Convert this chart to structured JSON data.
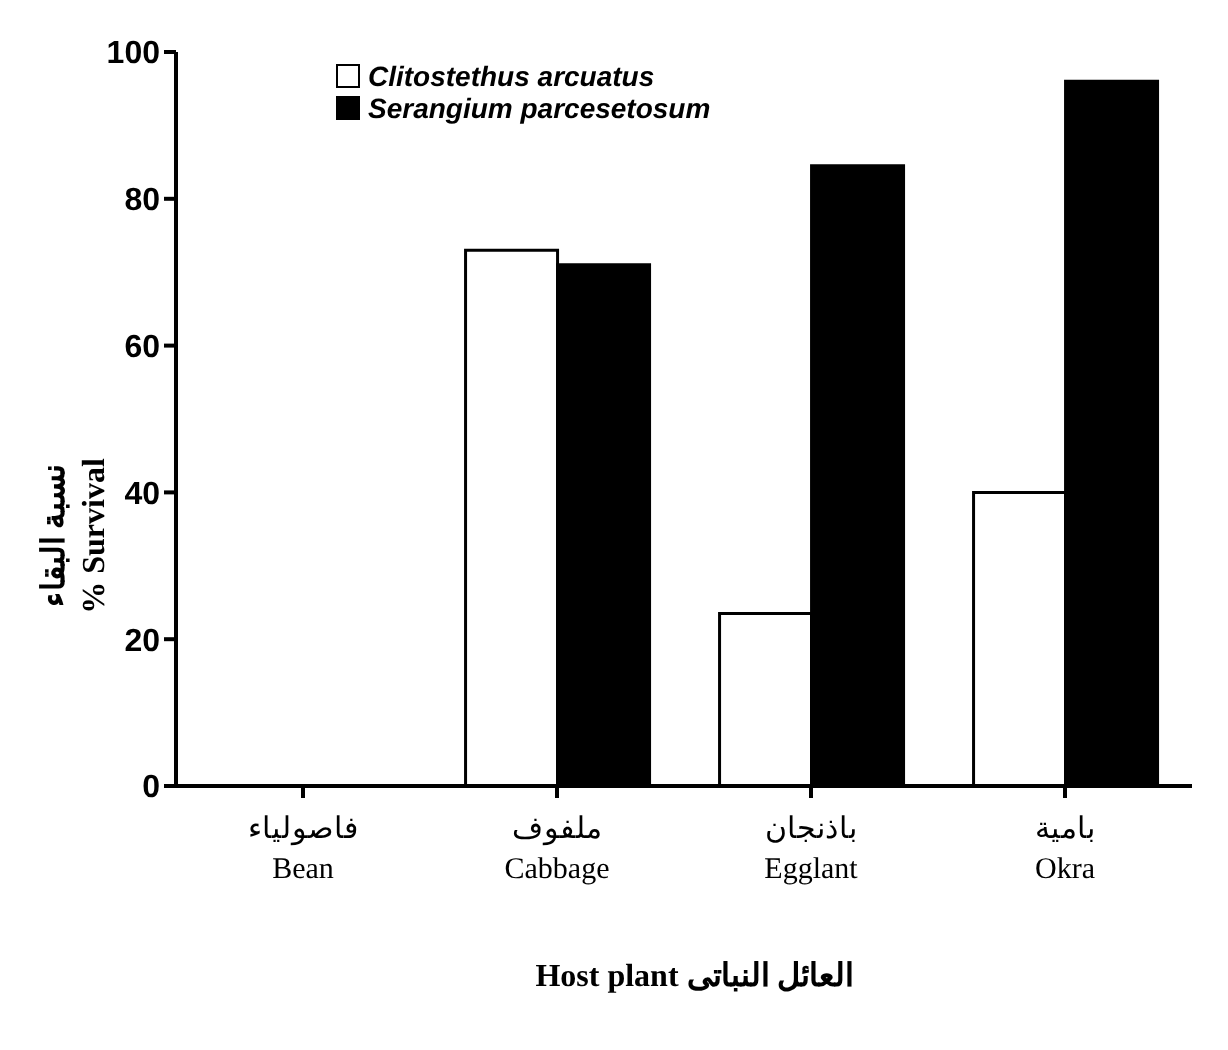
{
  "chart_data": {
    "type": "bar",
    "categories": [
      "فاصولياء\nBean",
      "ملفوف\nCabbage",
      "باذنجان\nEgglant",
      "بامية\nOkra"
    ],
    "series": [
      {
        "name": "Clitostethus arcuatus",
        "color": "#ffffff",
        "values": [
          0,
          73,
          23.5,
          40
        ]
      },
      {
        "name": "Serangium parcesetosum",
        "color": "#000000",
        "values": [
          0,
          71,
          84.5,
          96
        ]
      }
    ],
    "ylim": [
      0,
      100
    ],
    "yticks": [
      0,
      20,
      40,
      60,
      80,
      100
    ],
    "ylabel": "نسبة البقاء\n% Survival",
    "xlabel": "Host plant  العائل النباتى",
    "legend": "top left",
    "grid": false
  }
}
